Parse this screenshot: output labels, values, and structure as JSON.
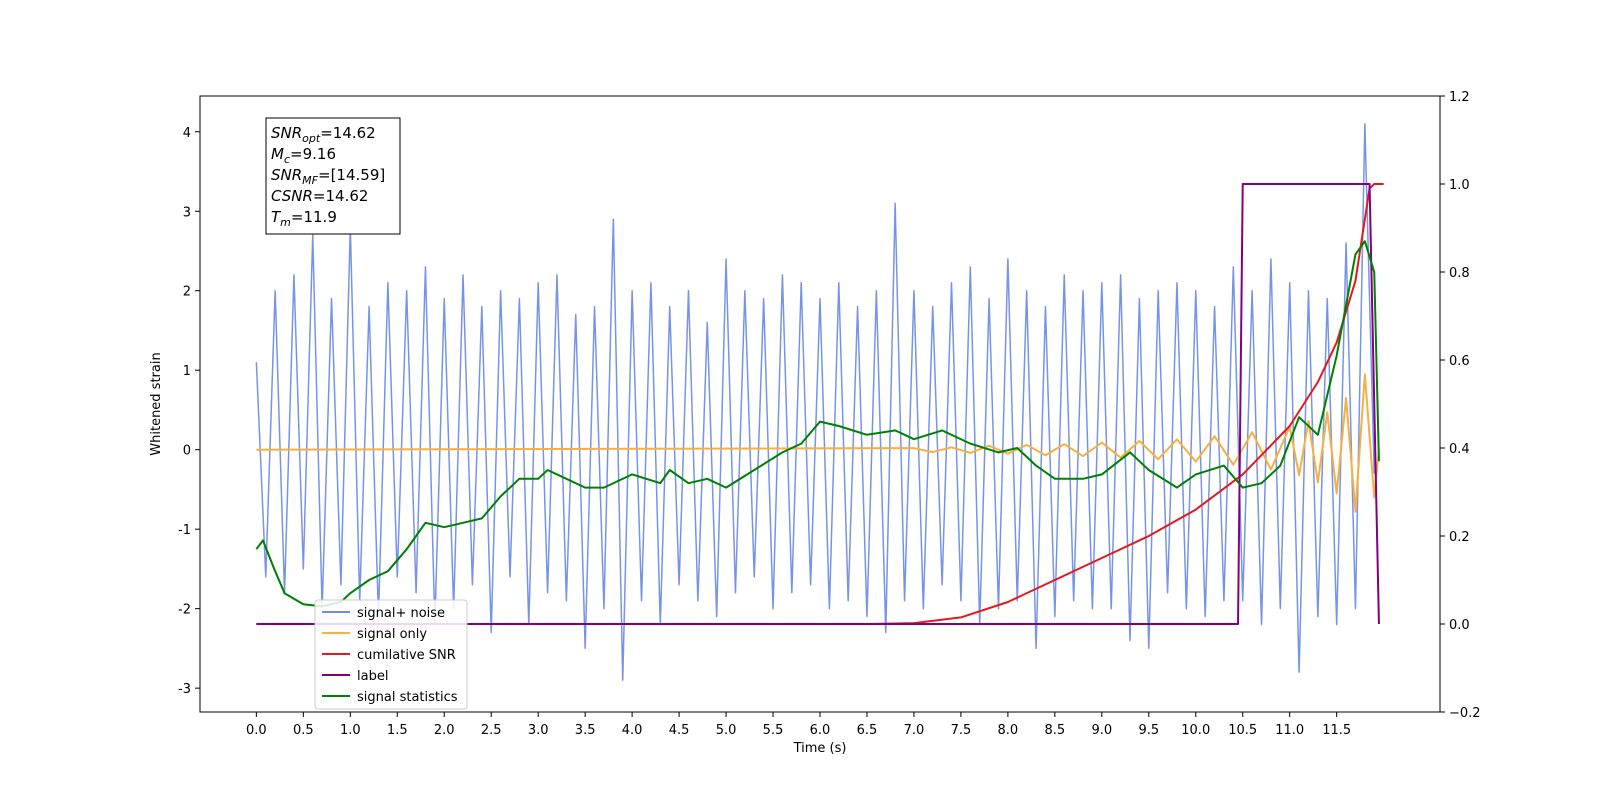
{
  "chart_data": {
    "type": "line",
    "xlabel": "Time (s)",
    "ylabel": "Whitened strain",
    "xlim": [
      -0.6,
      12.6
    ],
    "ylim": [
      -3.3,
      4.45
    ],
    "y2lim": [
      -0.2,
      1.2
    ],
    "xticks": [
      {
        "value": 0,
        "label": "0.0"
      },
      {
        "value": 0.5,
        "label": "0.5"
      },
      {
        "value": 1,
        "label": "1.0"
      },
      {
        "value": 1.5,
        "label": "1.5"
      },
      {
        "value": 2,
        "label": "2.0"
      },
      {
        "value": 2.5,
        "label": "2.5"
      },
      {
        "value": 3,
        "label": "3.0"
      },
      {
        "value": 3.5,
        "label": "3.5"
      },
      {
        "value": 4,
        "label": "4.0"
      },
      {
        "value": 4.5,
        "label": "4.5"
      },
      {
        "value": 5,
        "label": "5.0"
      },
      {
        "value": 5.5,
        "label": "5.5"
      },
      {
        "value": 6,
        "label": "6.0"
      },
      {
        "value": 6.5,
        "label": "6.5"
      },
      {
        "value": 7,
        "label": "7.0"
      },
      {
        "value": 7.5,
        "label": "7.5"
      },
      {
        "value": 8,
        "label": "8.0"
      },
      {
        "value": 8.5,
        "label": "8.5"
      },
      {
        "value": 9,
        "label": "9.0"
      },
      {
        "value": 9.5,
        "label": "9.5"
      },
      {
        "value": 10,
        "label": "10.0"
      },
      {
        "value": 10.5,
        "label": "10.5"
      },
      {
        "value": 11,
        "label": "11.0"
      },
      {
        "value": 11.5,
        "label": "11.5"
      }
    ],
    "yticks": [
      -3,
      -2,
      -1,
      0,
      1,
      2,
      3,
      4
    ],
    "y2ticks": [
      {
        "value": -0.2,
        "label": "−0.2"
      },
      {
        "value": 0,
        "label": "0.0"
      },
      {
        "value": 0.2,
        "label": "0.2"
      },
      {
        "value": 0.4,
        "label": "0.4"
      },
      {
        "value": 0.6,
        "label": "0.6"
      },
      {
        "value": 0.8,
        "label": "0.8"
      },
      {
        "value": 1,
        "label": "1.0"
      },
      {
        "value": 1.2,
        "label": "1.2"
      }
    ],
    "legend": "lower left",
    "annotation": [
      {
        "base": "SNR",
        "sub": "opt",
        "text": "=14.62"
      },
      {
        "base": "M",
        "sub": "c",
        "text": "=9.16"
      },
      {
        "base": "SNR",
        "sub": "MF",
        "text": "=[14.59]"
      },
      {
        "base": "CSNR",
        "sub": "",
        "text": "=14.62"
      },
      {
        "base": "T",
        "sub": "m",
        "text": "=11.9"
      }
    ],
    "series": [
      {
        "name": "signal+ noise",
        "color": "#6f8ee6",
        "axis": "y",
        "x": [
          0.0,
          0.1,
          0.2,
          0.3,
          0.4,
          0.5,
          0.6,
          0.7,
          0.8,
          0.9,
          1.0,
          1.1,
          1.2,
          1.3,
          1.4,
          1.5,
          1.6,
          1.7,
          1.8,
          1.9,
          2.0,
          2.1,
          2.2,
          2.3,
          2.4,
          2.5,
          2.6,
          2.7,
          2.8,
          2.9,
          3.0,
          3.1,
          3.2,
          3.3,
          3.4,
          3.5,
          3.6,
          3.7,
          3.8,
          3.9,
          4.0,
          4.1,
          4.2,
          4.3,
          4.4,
          4.5,
          4.6,
          4.7,
          4.8,
          4.9,
          5.0,
          5.1,
          5.2,
          5.3,
          5.4,
          5.5,
          5.6,
          5.7,
          5.8,
          5.9,
          6.0,
          6.1,
          6.2,
          6.3,
          6.4,
          6.5,
          6.6,
          6.7,
          6.8,
          6.9,
          7.0,
          7.1,
          7.2,
          7.3,
          7.4,
          7.5,
          7.6,
          7.7,
          7.8,
          7.9,
          8.0,
          8.1,
          8.2,
          8.3,
          8.4,
          8.5,
          8.6,
          8.7,
          8.8,
          8.9,
          9.0,
          9.1,
          9.2,
          9.3,
          9.4,
          9.5,
          9.6,
          9.7,
          9.8,
          9.9,
          10.0,
          10.1,
          10.2,
          10.3,
          10.4,
          10.5,
          10.6,
          10.7,
          10.8,
          10.9,
          11.0,
          11.1,
          11.2,
          11.3,
          11.4,
          11.5,
          11.6,
          11.7,
          11.8,
          11.9
        ],
        "values": [
          1.1,
          -1.6,
          2.0,
          -1.8,
          2.2,
          -1.5,
          2.7,
          -2.0,
          1.9,
          -1.7,
          2.8,
          -1.9,
          1.8,
          -2.1,
          2.1,
          -1.6,
          2.0,
          -1.8,
          2.3,
          -2.2,
          1.9,
          -2.0,
          2.2,
          -1.7,
          1.8,
          -2.3,
          2.0,
          -1.6,
          1.9,
          -2.2,
          2.1,
          -1.8,
          2.2,
          -1.9,
          1.7,
          -2.5,
          1.8,
          -2.0,
          2.9,
          -2.9,
          2.0,
          -1.9,
          2.1,
          -2.2,
          1.8,
          -1.7,
          2.0,
          -1.9,
          1.6,
          -2.1,
          2.4,
          -1.8,
          2.0,
          -1.6,
          1.9,
          -2.0,
          2.2,
          -1.8,
          2.1,
          -1.7,
          1.9,
          -2.0,
          2.1,
          -1.9,
          1.8,
          -2.1,
          2.0,
          -2.3,
          3.1,
          -1.9,
          2.0,
          -2.0,
          1.8,
          -1.7,
          2.1,
          -1.9,
          2.3,
          -2.2,
          1.9,
          -2.0,
          2.4,
          -1.9,
          2.0,
          -2.5,
          1.8,
          -2.1,
          2.2,
          -1.9,
          2.0,
          -2.0,
          2.1,
          -2.0,
          2.2,
          -2.4,
          1.9,
          -2.5,
          2.0,
          -1.8,
          2.1,
          -2.0,
          2.0,
          -2.1,
          1.8,
          -1.9,
          2.3,
          -1.9,
          2.0,
          -2.2,
          2.4,
          -2.0,
          2.1,
          -2.8,
          2.0,
          -2.1,
          1.9,
          -2.2,
          2.6,
          -2.0,
          4.1,
          -0.3
        ]
      },
      {
        "name": "signal only",
        "color": "#f5b041",
        "axis": "y",
        "x": [
          0,
          7.0,
          7.2,
          7.4,
          7.6,
          7.8,
          8.0,
          8.2,
          8.4,
          8.6,
          8.8,
          9.0,
          9.2,
          9.4,
          9.6,
          9.8,
          10.0,
          10.2,
          10.4,
          10.6,
          10.8,
          11.0,
          11.1,
          11.2,
          11.3,
          11.4,
          11.5,
          11.6,
          11.7,
          11.8,
          11.9,
          11.95
        ],
        "values": [
          0,
          0.02,
          -0.03,
          0.03,
          -0.04,
          0.05,
          -0.05,
          0.06,
          -0.07,
          0.07,
          -0.08,
          0.09,
          -0.1,
          0.11,
          -0.12,
          0.13,
          -0.15,
          0.17,
          -0.19,
          0.22,
          -0.25,
          0.29,
          -0.32,
          0.36,
          -0.41,
          0.47,
          -0.55,
          0.65,
          -0.78,
          0.95,
          -0.6,
          0
        ]
      },
      {
        "name": "cumilative SNR",
        "color": "#e31a1c",
        "axis": "y2",
        "x": [
          0,
          6.5,
          7.0,
          7.5,
          8.0,
          8.5,
          9.0,
          9.5,
          10.0,
          10.5,
          11.0,
          11.3,
          11.5,
          11.7,
          11.85,
          11.9,
          12.0
        ],
        "values": [
          0,
          0,
          0.002,
          0.015,
          0.05,
          0.1,
          0.15,
          0.2,
          0.26,
          0.34,
          0.45,
          0.55,
          0.64,
          0.78,
          0.99,
          1.0,
          1.0
        ]
      },
      {
        "name": "label",
        "color": "#800080",
        "axis": "y2",
        "x": [
          0,
          10.45,
          10.5,
          11.85,
          11.95
        ],
        "values": [
          0,
          0,
          1,
          1,
          0
        ]
      },
      {
        "name": "signal statistics",
        "color": "#008000",
        "axis": "y2",
        "x": [
          0,
          0.07,
          0.2,
          0.3,
          0.5,
          0.7,
          0.9,
          1.0,
          1.2,
          1.4,
          1.6,
          1.7,
          1.8,
          2.0,
          2.2,
          2.4,
          2.6,
          2.8,
          3.0,
          3.1,
          3.3,
          3.5,
          3.7,
          4.0,
          4.3,
          4.4,
          4.6,
          4.8,
          5.0,
          5.3,
          5.6,
          5.8,
          6.0,
          6.2,
          6.5,
          6.8,
          7.0,
          7.3,
          7.6,
          7.9,
          8.1,
          8.3,
          8.5,
          8.8,
          9.0,
          9.3,
          9.5,
          9.8,
          10.0,
          10.3,
          10.5,
          10.7,
          10.9,
          11.1,
          11.3,
          11.5,
          11.7,
          11.8,
          11.9,
          11.95
        ],
        "values": [
          0.17,
          0.19,
          0.12,
          0.07,
          0.045,
          0.04,
          0.05,
          0.07,
          0.1,
          0.12,
          0.17,
          0.2,
          0.23,
          0.22,
          0.23,
          0.24,
          0.29,
          0.33,
          0.33,
          0.35,
          0.33,
          0.31,
          0.31,
          0.34,
          0.32,
          0.35,
          0.32,
          0.33,
          0.31,
          0.35,
          0.39,
          0.41,
          0.46,
          0.45,
          0.43,
          0.44,
          0.42,
          0.44,
          0.41,
          0.39,
          0.4,
          0.36,
          0.33,
          0.33,
          0.34,
          0.39,
          0.35,
          0.31,
          0.34,
          0.36,
          0.31,
          0.32,
          0.36,
          0.47,
          0.43,
          0.61,
          0.84,
          0.87,
          0.8,
          0.37
        ]
      }
    ]
  }
}
